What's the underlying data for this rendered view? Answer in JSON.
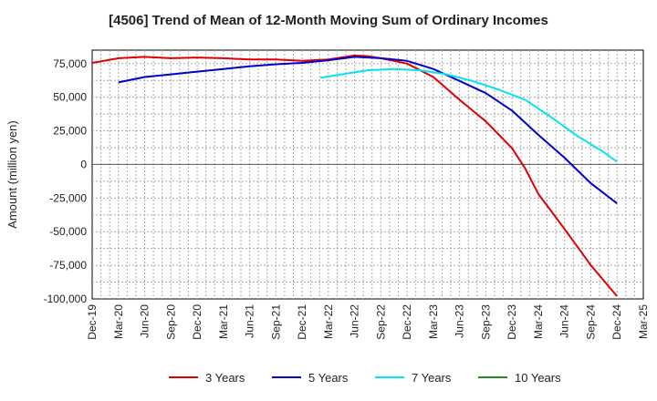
{
  "chart_data": {
    "type": "line",
    "title": "[4506]  Trend of Mean of 12-Month Moving Sum of Ordinary Incomes",
    "xlabel": "",
    "ylabel": "Amount (million yen)",
    "ylim": [
      -100000,
      85000
    ],
    "yticks": [
      75000,
      50000,
      25000,
      0,
      -25000,
      -50000,
      -75000,
      -100000
    ],
    "ytick_labels": [
      "75,000",
      "50,000",
      "25,000",
      "0",
      "-25,000",
      "-50,000",
      "-75,000",
      "-100,000"
    ],
    "x_labels": [
      "Dec-19",
      "Mar-20",
      "Jun-20",
      "Sep-20",
      "Dec-20",
      "Mar-21",
      "Jun-21",
      "Sep-21",
      "Dec-21",
      "Mar-22",
      "Jun-22",
      "Sep-22",
      "Dec-22",
      "Mar-23",
      "Jun-23",
      "Sep-23",
      "Dec-23",
      "Mar-24",
      "Jun-24",
      "Sep-24",
      "Dec-24",
      "Mar-25"
    ],
    "grid": true,
    "legend_position": "bottom",
    "series": [
      {
        "name": "3 Years",
        "color": "#e00000",
        "points": [
          [
            0,
            75500
          ],
          [
            1,
            79000
          ],
          [
            2,
            80000
          ],
          [
            3,
            79000
          ],
          [
            4,
            79500
          ],
          [
            5,
            79000
          ],
          [
            6,
            78000
          ],
          [
            7,
            78000
          ],
          [
            8,
            77000
          ],
          [
            9,
            78000
          ],
          [
            10,
            81000
          ],
          [
            10.5,
            80500
          ],
          [
            11,
            79000
          ],
          [
            12,
            75000
          ],
          [
            13,
            65000
          ],
          [
            14,
            48000
          ],
          [
            15,
            32000
          ],
          [
            16,
            12000
          ],
          [
            16.5,
            -3000
          ],
          [
            17,
            -22000
          ],
          [
            18,
            -48000
          ],
          [
            19,
            -75000
          ],
          [
            20,
            -98000
          ]
        ]
      },
      {
        "name": "5 Years",
        "color": "#0000cc",
        "points": [
          [
            1,
            61000
          ],
          [
            2,
            65000
          ],
          [
            3,
            67000
          ],
          [
            4,
            69000
          ],
          [
            5,
            71000
          ],
          [
            6,
            73000
          ],
          [
            7,
            74500
          ],
          [
            8,
            75500
          ],
          [
            9,
            77500
          ],
          [
            10,
            80000
          ],
          [
            11,
            79000
          ],
          [
            12,
            77000
          ],
          [
            13,
            71000
          ],
          [
            14,
            62000
          ],
          [
            15,
            53000
          ],
          [
            16,
            40000
          ],
          [
            17,
            22000
          ],
          [
            18,
            5000
          ],
          [
            19,
            -14000
          ],
          [
            20,
            -29000
          ]
        ]
      },
      {
        "name": "7 Years",
        "color": "#00e5ee",
        "points": [
          [
            8.7,
            64500
          ],
          [
            9.5,
            67000
          ],
          [
            10.5,
            70000
          ],
          [
            11.5,
            71000
          ],
          [
            12.5,
            70000
          ],
          [
            13.5,
            67000
          ],
          [
            14.5,
            62000
          ],
          [
            15.5,
            55500
          ],
          [
            16.5,
            48000
          ],
          [
            17.5,
            35000
          ],
          [
            18.5,
            21000
          ],
          [
            19.5,
            9000
          ],
          [
            20,
            2000
          ]
        ]
      },
      {
        "name": "10 Years",
        "color": "#228b22",
        "points": []
      }
    ]
  }
}
